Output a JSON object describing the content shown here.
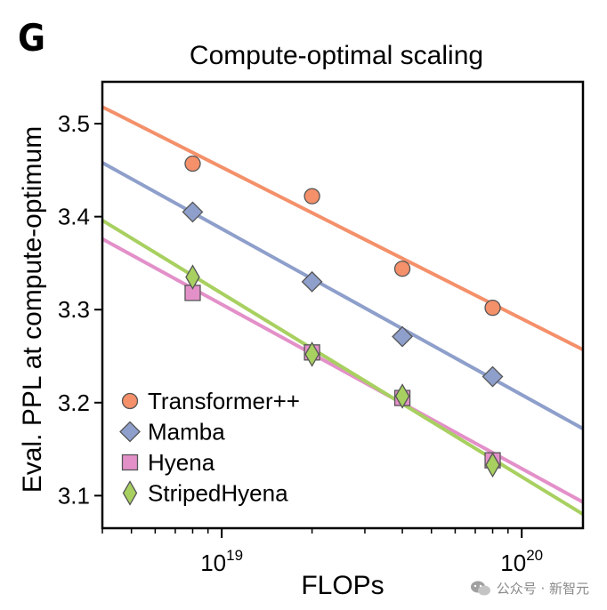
{
  "panel_label": "G",
  "watermark": {
    "text": "公众号 · 新智元"
  },
  "chart_data": {
    "type": "scatter",
    "title": "Compute-optimal scaling",
    "xlabel": "FLOPs",
    "ylabel": "Eval. PPL at compute-optimum",
    "x_scale": "log",
    "xlim": [
      4e+18,
      1.6e+20
    ],
    "ylim": [
      3.065,
      3.545
    ],
    "x_ticks": [
      {
        "value": 1e+19,
        "base": "10",
        "exp": "19"
      },
      {
        "value": 1e+20,
        "base": "10",
        "exp": "20"
      }
    ],
    "y_ticks": [
      3.1,
      3.2,
      3.3,
      3.4,
      3.5
    ],
    "y_tick_labels": [
      "3.1",
      "3.2",
      "3.3",
      "3.4",
      "3.5"
    ],
    "grid": false,
    "legend_position": "bottom-left",
    "series": [
      {
        "name": "Transformer++",
        "marker": "circle",
        "color": "#F4906A",
        "points": [
          [
            8e+18,
            3.457
          ],
          [
            2e+19,
            3.422
          ],
          [
            4e+19,
            3.344
          ],
          [
            8e+19,
            3.302
          ]
        ],
        "fit": [
          [
            4e+18,
            3.518
          ],
          [
            1.6e+20,
            3.257
          ]
        ]
      },
      {
        "name": "Mamba",
        "marker": "diamond",
        "color": "#8E9FCB",
        "points": [
          [
            8e+18,
            3.405
          ],
          [
            2e+19,
            3.33
          ],
          [
            4e+19,
            3.271
          ],
          [
            8e+19,
            3.228
          ]
        ],
        "fit": [
          [
            4e+18,
            3.458
          ],
          [
            1.6e+20,
            3.172
          ]
        ]
      },
      {
        "name": "Hyena",
        "marker": "square",
        "color": "#E390C9",
        "points": [
          [
            8e+18,
            3.318
          ],
          [
            2e+19,
            3.254
          ],
          [
            4e+19,
            3.205
          ],
          [
            8e+19,
            3.138
          ]
        ],
        "fit": [
          [
            4e+18,
            3.376
          ],
          [
            1.6e+20,
            3.093
          ]
        ]
      },
      {
        "name": "StripedHyena",
        "marker": "thin-diamond",
        "color": "#A8D060",
        "points": [
          [
            8e+18,
            3.335
          ],
          [
            2e+19,
            3.252
          ],
          [
            4e+19,
            3.207
          ],
          [
            8e+19,
            3.133
          ]
        ],
        "fit": [
          [
            4e+18,
            3.396
          ],
          [
            1.6e+20,
            3.08
          ]
        ]
      }
    ]
  }
}
